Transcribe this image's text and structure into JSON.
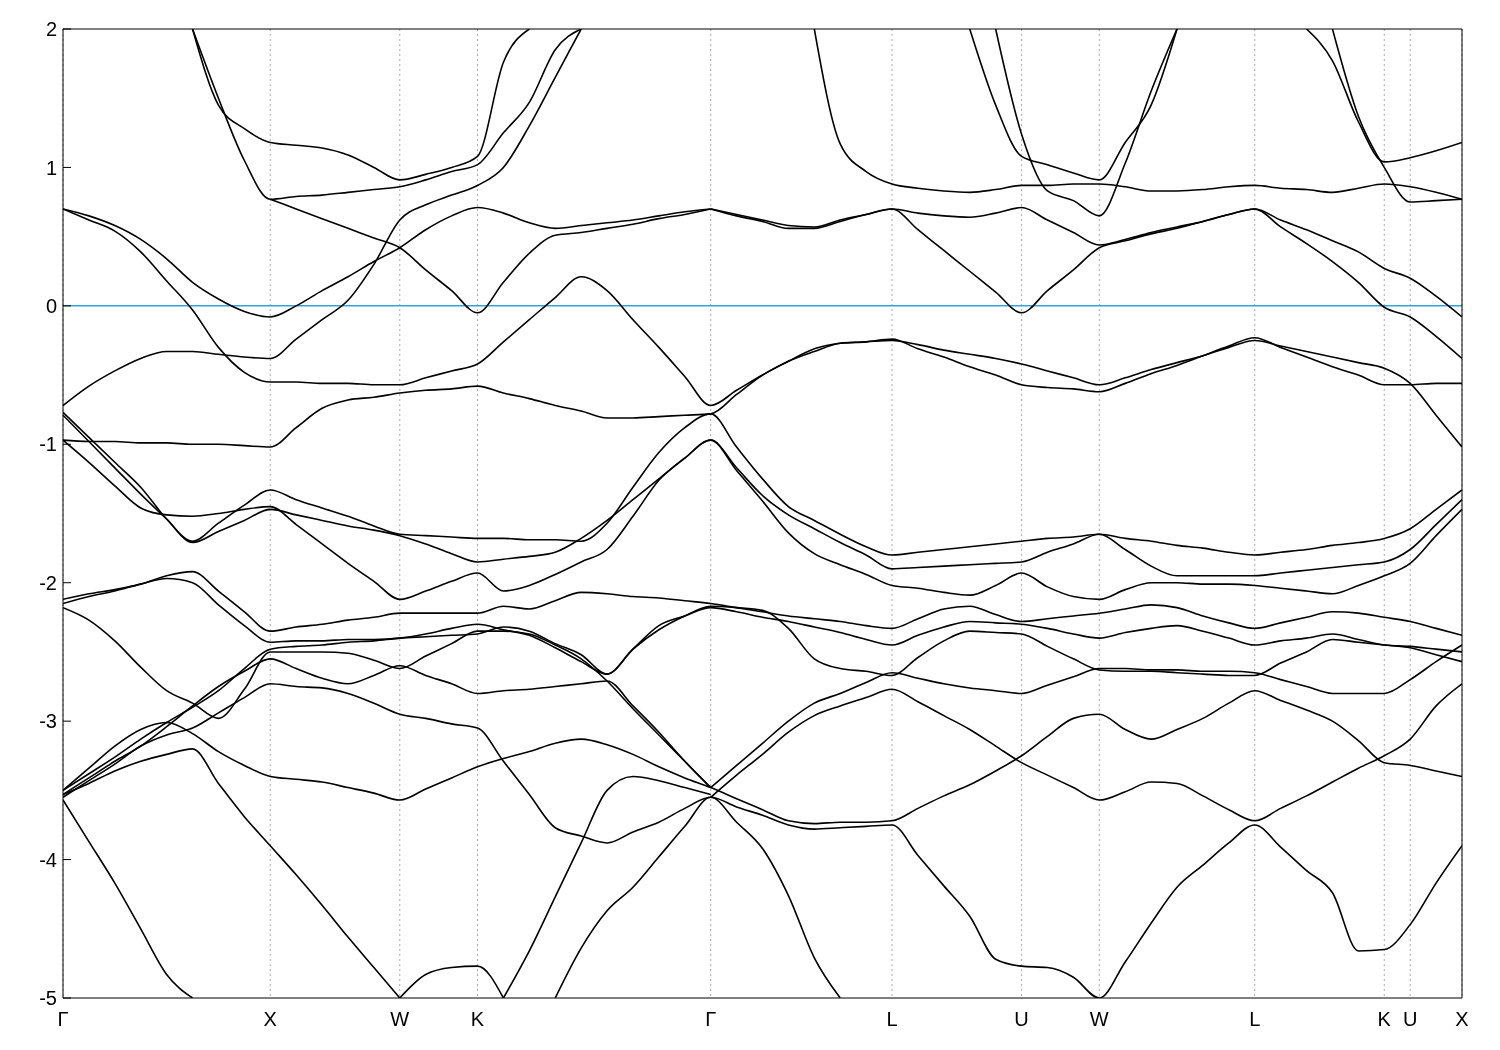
{
  "chart_data": {
    "type": "line",
    "ylim": [
      -5,
      2
    ],
    "yticks": [
      -5,
      -4,
      -3,
      -2,
      -1,
      0,
      1,
      2
    ],
    "grid": "x",
    "marker": "none",
    "line_style": "solid",
    "categories": [
      "Γ",
      null,
      null,
      null,
      null,
      null,
      null,
      null,
      "X",
      null,
      null,
      null,
      null,
      "W",
      null,
      null,
      "K",
      null,
      null,
      null,
      null,
      null,
      null,
      null,
      null,
      "Γ",
      null,
      null,
      null,
      null,
      null,
      null,
      "L",
      null,
      null,
      null,
      null,
      "U",
      null,
      null,
      "W",
      null,
      null,
      null,
      null,
      null,
      "L",
      null,
      null,
      null,
      null,
      "K",
      "U",
      null,
      "X"
    ],
    "ref_lines": [
      {
        "axis": "y",
        "value": 0,
        "color": "#33a3dc"
      }
    ],
    "series": [
      {
        "color": "#000000",
        "values": [
          0.7,
          0.62,
          0.54,
          0.39,
          0.18,
          -0.03,
          -0.3,
          -0.48,
          -0.55,
          -0.55,
          -0.56,
          -0.56,
          -0.57,
          -0.57,
          -0.52,
          -0.47,
          -0.42,
          -0.26,
          -0.1,
          0.06,
          0.21,
          0.11,
          -0.1,
          -0.3,
          -0.51,
          -0.72,
          -0.61,
          -0.5,
          -0.4,
          -0.33,
          -0.27,
          -0.26,
          -0.24,
          -0.31,
          -0.37,
          -0.44,
          -0.5,
          -0.57,
          -0.59,
          -0.6,
          -0.62,
          -0.56,
          -0.49,
          -0.43,
          -0.36,
          -0.29,
          -0.23,
          -0.3,
          -0.37,
          -0.44,
          -0.5,
          -0.57,
          -0.57,
          -0.56,
          -0.56
        ]
      },
      {
        "color": "#000000",
        "values": [
          0.7,
          0.65,
          0.58,
          0.48,
          0.34,
          0.17,
          0.05,
          -0.04,
          -0.08,
          0.0,
          0.11,
          0.21,
          0.32,
          0.42,
          0.55,
          0.65,
          0.71,
          0.67,
          0.6,
          0.56,
          0.58,
          0.6,
          0.62,
          0.65,
          0.68,
          0.7,
          null,
          null,
          null,
          null,
          null,
          null,
          null,
          null,
          null,
          null,
          null,
          null,
          null,
          null,
          null,
          null,
          null,
          null,
          null,
          null,
          null,
          null,
          null,
          null,
          null,
          null,
          null,
          null,
          null
        ]
      },
      {
        "color": "#000000",
        "values": [
          -0.72,
          -0.58,
          -0.47,
          -0.38,
          -0.33,
          -0.33,
          -0.35,
          -0.37,
          -0.38,
          -0.24,
          -0.1,
          0.04,
          0.3,
          0.62,
          0.73,
          0.8,
          0.87,
          1.0,
          1.3,
          1.65,
          2,
          null,
          null,
          null,
          null,
          null,
          null,
          null,
          null,
          null,
          null,
          null,
          null,
          null,
          null,
          null,
          null,
          null,
          null,
          null,
          null,
          null,
          null,
          null,
          null,
          null,
          null,
          null,
          null,
          null,
          null,
          null,
          null,
          null,
          null
        ]
      },
      {
        "color": "#000000",
        "values": [
          null,
          null,
          null,
          null,
          null,
          2,
          1.45,
          1.28,
          1.18,
          1.16,
          1.14,
          1.09,
          1.0,
          0.91,
          0.95,
          1.0,
          1.08,
          1.76,
          2,
          null,
          null,
          null,
          null,
          null,
          null,
          null,
          null,
          null,
          null,
          null,
          null,
          null,
          null,
          null,
          null,
          null,
          null,
          null,
          null,
          null,
          null,
          null,
          null,
          null,
          null,
          null,
          null,
          null,
          null,
          null,
          null,
          null,
          null,
          null,
          null
        ]
      },
      {
        "color": "#000000",
        "values": [
          null,
          null,
          null,
          null,
          null,
          2,
          1.5,
          1.05,
          0.77,
          0.79,
          0.8,
          0.82,
          0.84,
          0.86,
          0.91,
          0.97,
          1.02,
          1.25,
          1.47,
          1.85,
          2,
          null,
          null,
          null,
          null,
          null,
          null,
          null,
          null,
          null,
          null,
          null,
          null,
          null,
          null,
          null,
          null,
          null,
          null,
          null,
          null,
          null,
          null,
          null,
          null,
          null,
          null,
          null,
          null,
          null,
          null,
          null,
          null,
          null,
          null
        ]
      },
      {
        "color": "#000000",
        "values": [
          null,
          null,
          null,
          null,
          null,
          null,
          null,
          null,
          0.77,
          0.7,
          0.63,
          0.56,
          0.49,
          0.42,
          0.26,
          0.11,
          -0.05,
          0.17,
          0.38,
          0.51,
          0.53,
          0.56,
          0.59,
          0.63,
          0.66,
          0.7,
          null,
          null,
          null,
          null,
          null,
          null,
          null,
          null,
          null,
          null,
          null,
          null,
          null,
          null,
          null,
          null,
          null,
          null,
          null,
          null,
          null,
          null,
          null,
          null,
          null,
          null,
          null,
          null,
          null
        ]
      },
      {
        "color": "#000000",
        "values": [
          null,
          null,
          null,
          null,
          null,
          null,
          null,
          null,
          null,
          null,
          null,
          null,
          null,
          null,
          null,
          null,
          null,
          null,
          null,
          null,
          null,
          null,
          null,
          null,
          null,
          0.7,
          0.66,
          0.62,
          0.58,
          0.57,
          0.62,
          0.66,
          0.7,
          0.55,
          0.4,
          0.25,
          0.1,
          -0.05,
          0.11,
          0.26,
          0.42,
          0.47,
          0.52,
          0.56,
          0.61,
          0.66,
          0.7,
          0.57,
          0.45,
          0.32,
          0.17,
          -0.01,
          -0.08,
          -0.22,
          -0.38
        ]
      },
      {
        "color": "#000000",
        "values": [
          null,
          null,
          null,
          null,
          null,
          null,
          null,
          null,
          null,
          null,
          null,
          null,
          null,
          null,
          null,
          null,
          null,
          null,
          null,
          null,
          null,
          null,
          null,
          null,
          null,
          0.7,
          0.65,
          0.61,
          0.56,
          0.56,
          0.61,
          0.66,
          0.7,
          0.67,
          0.65,
          0.64,
          0.67,
          0.71,
          0.62,
          0.53,
          0.44,
          0.48,
          0.53,
          0.57,
          0.61,
          0.66,
          0.7,
          0.62,
          0.55,
          0.47,
          0.39,
          0.27,
          0.2,
          0.07,
          -0.08
        ]
      },
      {
        "color": "#000000",
        "values": [
          null,
          null,
          null,
          null,
          null,
          null,
          null,
          null,
          null,
          null,
          null,
          null,
          null,
          null,
          null,
          null,
          null,
          null,
          null,
          null,
          null,
          null,
          null,
          null,
          null,
          null,
          null,
          null,
          null,
          2,
          1.17,
          0.97,
          0.88,
          0.85,
          0.83,
          0.82,
          0.84,
          0.87,
          0.87,
          0.88,
          0.88,
          0.86,
          0.83,
          0.83,
          0.84,
          0.86,
          0.87,
          0.85,
          0.84,
          0.82,
          0.85,
          0.88,
          0.86,
          0.82,
          0.77
        ]
      },
      {
        "color": "#000000",
        "values": [
          null,
          null,
          null,
          null,
          null,
          null,
          null,
          null,
          null,
          null,
          null,
          null,
          null,
          null,
          null,
          null,
          null,
          null,
          null,
          null,
          null,
          null,
          null,
          null,
          null,
          null,
          null,
          null,
          null,
          null,
          null,
          null,
          null,
          null,
          null,
          2,
          1.45,
          1.08,
          1.02,
          0.96,
          0.91,
          1.18,
          1.45,
          2,
          null,
          null,
          null,
          null,
          null,
          null,
          null,
          null,
          null,
          null,
          null
        ]
      },
      {
        "color": "#000000",
        "values": [
          null,
          null,
          null,
          null,
          null,
          null,
          null,
          null,
          null,
          null,
          null,
          null,
          null,
          null,
          null,
          null,
          null,
          null,
          null,
          null,
          null,
          null,
          null,
          null,
          null,
          null,
          null,
          null,
          null,
          null,
          null,
          null,
          null,
          null,
          null,
          null,
          2,
          1.24,
          0.83,
          0.76,
          0.65,
          1.03,
          1.55,
          2,
          null,
          null,
          null,
          null,
          null,
          null,
          null,
          null,
          null,
          null,
          null
        ]
      },
      {
        "color": "#000000",
        "values": [
          null,
          null,
          null,
          null,
          null,
          null,
          null,
          null,
          null,
          null,
          null,
          null,
          null,
          null,
          null,
          null,
          null,
          null,
          null,
          null,
          null,
          null,
          null,
          null,
          null,
          null,
          null,
          null,
          null,
          null,
          null,
          null,
          null,
          null,
          null,
          null,
          null,
          null,
          null,
          null,
          null,
          null,
          null,
          null,
          null,
          null,
          null,
          null,
          2,
          1.77,
          1.33,
          1.04,
          1.07,
          1.12,
          1.18
        ]
      },
      {
        "color": "#000000",
        "values": [
          null,
          null,
          null,
          null,
          null,
          null,
          null,
          null,
          null,
          null,
          null,
          null,
          null,
          null,
          null,
          null,
          null,
          null,
          null,
          null,
          null,
          null,
          null,
          null,
          null,
          null,
          null,
          null,
          null,
          null,
          null,
          null,
          null,
          null,
          null,
          null,
          null,
          null,
          null,
          null,
          null,
          null,
          null,
          null,
          null,
          null,
          null,
          null,
          null,
          2,
          1.37,
          1.0,
          0.75,
          0.76,
          0.77
        ]
      },
      {
        "color": "#000000",
        "values": [
          -0.97,
          -0.98,
          -0.98,
          -0.99,
          -0.99,
          -1.0,
          -1.0,
          -1.01,
          -1.02,
          -0.88,
          -0.74,
          -0.68,
          -0.66,
          -0.63,
          -0.61,
          -0.6,
          -0.58,
          -0.63,
          -0.67,
          -0.72,
          -0.76,
          -0.81,
          -0.81,
          -0.8,
          -0.79,
          -0.78,
          -0.64,
          -0.5,
          -0.4,
          -0.31,
          -0.27,
          -0.26,
          -0.25,
          -0.28,
          -0.32,
          -0.35,
          -0.38,
          -0.42,
          -0.47,
          -0.52,
          -0.57,
          -0.52,
          -0.46,
          -0.41,
          -0.36,
          -0.3,
          -0.25,
          -0.29,
          -0.33,
          -0.37,
          -0.41,
          -0.45,
          -0.56,
          -0.79,
          -1.02
        ]
      },
      {
        "color": "#000000",
        "values": [
          -0.77,
          -0.95,
          -1.13,
          -1.31,
          -1.54,
          -1.7,
          -1.57,
          -1.44,
          -1.33,
          -1.4,
          -1.46,
          -1.52,
          -1.59,
          -1.65,
          -1.66,
          -1.67,
          -1.68,
          -1.68,
          -1.69,
          -1.69,
          -1.7,
          -1.57,
          -1.31,
          -1.06,
          -0.88,
          -0.78,
          -1.02,
          -1.25,
          -1.45,
          -1.55,
          -1.65,
          -1.74,
          -1.8,
          -1.78,
          -1.76,
          -1.74,
          -1.72,
          -1.7,
          -1.68,
          -1.67,
          -1.65,
          -1.68,
          -1.7,
          -1.73,
          -1.75,
          -1.78,
          -1.8,
          -1.78,
          -1.76,
          -1.73,
          -1.71,
          -1.68,
          -1.61,
          -1.47,
          -1.33
        ]
      },
      {
        "color": "#000000",
        "values": [
          -0.79,
          -0.98,
          -1.17,
          -1.36,
          -1.54,
          -1.71,
          -1.63,
          -1.55,
          -1.47,
          -1.51,
          -1.55,
          -1.59,
          -1.62,
          -1.66,
          -1.72,
          -1.79,
          -1.85,
          -1.83,
          -1.81,
          -1.78,
          -1.68,
          -1.55,
          -1.4,
          -1.25,
          -1.1,
          -0.97,
          -1.17,
          -1.37,
          -1.51,
          -1.61,
          -1.71,
          -1.8,
          -1.9,
          -1.89,
          -1.88,
          -1.87,
          -1.86,
          -1.85,
          -1.78,
          -1.72,
          -1.65,
          -1.76,
          -1.88,
          -1.95,
          -1.95,
          -1.95,
          -1.95,
          -1.93,
          -1.91,
          -1.89,
          -1.87,
          -1.85,
          -1.76,
          -1.58,
          -1.4
        ]
      },
      {
        "color": "#000000",
        "values": [
          -0.97,
          -1.13,
          -1.3,
          -1.46,
          -1.51,
          -1.52,
          -1.5,
          -1.47,
          -1.45,
          -1.58,
          -1.72,
          -1.86,
          -1.99,
          -2.12,
          -2.06,
          -1.99,
          -1.93,
          -2.06,
          -2.02,
          -1.94,
          -1.85,
          -1.76,
          -1.52,
          -1.26,
          -1.1,
          -0.97,
          -1.19,
          -1.41,
          -1.64,
          -1.79,
          -1.87,
          -1.94,
          -2.02,
          -2.04,
          -2.07,
          -2.09,
          -2.02,
          -1.93,
          -2.03,
          -2.1,
          -2.12,
          -2.05,
          -2.0,
          -2.0,
          -2.01,
          -2.01,
          -2.02,
          -2.04,
          -2.06,
          -2.08,
          -2.02,
          -1.95,
          -1.86,
          -1.66,
          -1.47
        ]
      },
      {
        "color": "#000000",
        "values": [
          -2.12,
          -2.08,
          -2.05,
          -2.01,
          -1.95,
          -1.92,
          -2.06,
          -2.21,
          -2.35,
          -2.32,
          -2.3,
          -2.27,
          -2.25,
          -2.22,
          -2.22,
          -2.22,
          -2.22,
          -2.17,
          -2.19,
          -2.13,
          -2.07,
          -2.08,
          -2.1,
          -2.11,
          -2.13,
          -2.15,
          -2.18,
          -2.21,
          -2.24,
          -2.26,
          -2.28,
          -2.31,
          -2.33,
          -2.26,
          -2.19,
          -2.17,
          -2.23,
          -2.28,
          -2.26,
          -2.24,
          -2.22,
          -2.19,
          -2.16,
          -2.18,
          -2.24,
          -2.29,
          -2.33,
          -2.29,
          -2.25,
          -2.21,
          -2.22,
          -2.25,
          -2.28,
          -2.33,
          -2.38
        ]
      },
      {
        "color": "#000000",
        "values": [
          -2.15,
          -2.1,
          -2.06,
          -2.01,
          -1.97,
          -2.0,
          -2.16,
          -2.31,
          -2.43,
          -2.42,
          -2.42,
          -2.41,
          -2.41,
          -2.4,
          -2.37,
          -2.33,
          -2.3,
          -2.34,
          -2.38,
          -2.47,
          -2.57,
          -2.66,
          -2.48,
          -2.34,
          -2.24,
          -2.17,
          -2.18,
          -2.2,
          -2.33,
          -2.55,
          -2.62,
          -2.64,
          -2.67,
          -2.54,
          -2.42,
          -2.35,
          -2.36,
          -2.37,
          -2.46,
          -2.55,
          -2.63,
          -2.64,
          -2.64,
          -2.65,
          -2.66,
          -2.67,
          -2.67,
          -2.58,
          -2.5,
          -2.41,
          -2.43,
          -2.45,
          -2.47,
          -2.52,
          -2.57
        ]
      },
      {
        "color": "#000000",
        "values": [
          -2.18,
          -2.27,
          -2.42,
          -2.61,
          -2.78,
          -2.87,
          -2.98,
          -2.77,
          -2.5,
          -2.5,
          -2.5,
          -2.51,
          -2.56,
          -2.62,
          -2.53,
          -2.44,
          -2.35,
          -2.35,
          -2.37,
          -2.45,
          -2.55,
          -2.71,
          -2.91,
          -3.1,
          -3.29,
          -3.48,
          null,
          null,
          null,
          null,
          null,
          null,
          null,
          null,
          null,
          null,
          null,
          null,
          null,
          null,
          null,
          null,
          null,
          null,
          null,
          null,
          null,
          null,
          null,
          null,
          null,
          null,
          null,
          null,
          null
        ]
      },
      {
        "color": "#000000",
        "values": [
          -3.5,
          -3.38,
          -3.26,
          -3.13,
          -3.01,
          -2.9,
          -2.78,
          -2.62,
          -2.48,
          -2.46,
          -2.45,
          -2.43,
          -2.42,
          -2.4,
          -2.39,
          -2.38,
          -2.37,
          -2.32,
          -2.35,
          -2.44,
          -2.52,
          -2.66,
          -2.48,
          -2.31,
          -2.24,
          -2.18,
          -2.21,
          -2.25,
          -2.28,
          -2.32,
          -2.36,
          -2.41,
          -2.45,
          -2.38,
          -2.32,
          -2.28,
          -2.29,
          -2.3,
          -2.33,
          -2.37,
          -2.4,
          -2.36,
          -2.33,
          -2.31,
          -2.35,
          -2.4,
          -2.45,
          -2.42,
          -2.4,
          -2.37,
          -2.41,
          -2.45,
          -2.46,
          -2.48,
          -2.5
        ]
      },
      {
        "color": "#000000",
        "values": [
          -3.53,
          -3.41,
          -3.29,
          -3.18,
          -3.04,
          -2.89,
          -2.75,
          -2.64,
          -2.55,
          -2.62,
          -2.69,
          -2.73,
          -2.67,
          -2.6,
          -2.67,
          -2.73,
          -2.8,
          -2.78,
          -2.77,
          -2.75,
          -2.73,
          -2.71,
          -2.89,
          -3.08,
          -3.29,
          -3.48,
          null,
          null,
          null,
          null,
          null,
          null,
          null,
          null,
          null,
          null,
          null,
          null,
          null,
          null,
          null,
          null,
          null,
          null,
          null,
          null,
          null,
          null,
          null,
          null,
          null,
          null,
          null,
          null,
          null
        ]
      },
      {
        "color": "#000000",
        "values": [
          -3.55,
          -3.43,
          -3.31,
          -3.18,
          -3.1,
          -3.05,
          -2.94,
          -2.83,
          -2.73,
          -2.75,
          -2.76,
          -2.8,
          -2.87,
          -2.95,
          -2.98,
          -3.02,
          -3.05,
          -3.29,
          -3.53,
          -3.77,
          -3.83,
          -3.88,
          -3.8,
          -3.73,
          -3.63,
          -3.55,
          -3.62,
          -3.68,
          -3.75,
          -3.78,
          -3.77,
          -3.76,
          -3.75,
          -3.97,
          -4.19,
          -4.41,
          -4.72,
          -4.77,
          -4.78,
          -4.85,
          -5.0,
          -4.74,
          -4.46,
          -4.2,
          -4.04,
          -3.88,
          -3.75,
          -3.91,
          -4.08,
          -4.24,
          -4.66,
          -4.65,
          -4.47,
          -4.17,
          -3.9
        ]
      },
      {
        "color": "#000000",
        "values": [
          -3.5,
          -3.34,
          -3.18,
          -3.06,
          -3.01,
          -3.09,
          -3.22,
          -3.32,
          -3.4,
          -3.42,
          -3.44,
          -3.48,
          -3.52,
          -3.57,
          -3.49,
          -3.41,
          -3.33,
          -3.27,
          -3.22,
          -3.16,
          -3.13,
          -3.17,
          -3.24,
          -3.33,
          -3.41,
          -3.48,
          -3.56,
          -3.64,
          -3.72,
          -3.74,
          -3.73,
          -3.73,
          -3.72,
          -3.63,
          -3.54,
          -3.46,
          -3.36,
          -3.25,
          -3.11,
          -2.98,
          -2.95,
          -3.06,
          -3.13,
          -3.06,
          -2.98,
          -2.87,
          -2.78,
          -2.85,
          -2.92,
          -3.0,
          -3.14,
          -3.3,
          -3.32,
          -3.36,
          -3.4
        ]
      },
      {
        "color": "#000000",
        "values": [
          null,
          null,
          null,
          null,
          null,
          null,
          null,
          null,
          null,
          null,
          null,
          null,
          null,
          null,
          null,
          null,
          null,
          null,
          null,
          null,
          null,
          null,
          null,
          null,
          null,
          -3.48,
          -3.32,
          -3.16,
          -3.0,
          -2.87,
          -2.8,
          -2.72,
          -2.65,
          -2.69,
          -2.73,
          -2.76,
          -2.78,
          -2.8,
          -2.74,
          -2.68,
          -2.62,
          -2.62,
          -2.63,
          -2.63,
          -2.64,
          -2.64,
          -2.65,
          -2.7,
          -2.75,
          -2.8,
          -2.8,
          -2.8,
          -2.7,
          -2.57,
          -2.45
        ]
      },
      {
        "color": "#000000",
        "values": [
          null,
          null,
          null,
          null,
          null,
          null,
          null,
          null,
          null,
          null,
          null,
          null,
          null,
          null,
          null,
          null,
          null,
          null,
          null,
          null,
          null,
          null,
          null,
          null,
          null,
          -3.55,
          -3.39,
          -3.24,
          -3.08,
          -2.96,
          -2.89,
          -2.83,
          -2.77,
          -2.86,
          -2.96,
          -3.06,
          -3.18,
          -3.3,
          -3.39,
          -3.48,
          -3.57,
          -3.51,
          -3.44,
          -3.45,
          -3.54,
          -3.64,
          -3.72,
          -3.63,
          -3.54,
          -3.44,
          -3.34,
          -3.25,
          -3.13,
          -2.89,
          -2.73
        ]
      },
      {
        "color": "#000000",
        "values": [
          -3.57,
          -3.87,
          -4.17,
          -4.5,
          -4.83,
          -5,
          null,
          null,
          null,
          null,
          null,
          null,
          null,
          null,
          null,
          null,
          null,
          null,
          null,
          null,
          null,
          null,
          null,
          null,
          null,
          null,
          null,
          null,
          null,
          null,
          null,
          null,
          null,
          null,
          null,
          null,
          null,
          null,
          null,
          null,
          null,
          null,
          null,
          null,
          null,
          null,
          null,
          null,
          null,
          null,
          null,
          null,
          null,
          null,
          null
        ]
      },
      {
        "color": "#000000",
        "values": [
          -3.53,
          -3.45,
          -3.36,
          -3.29,
          -3.24,
          -3.2,
          -3.45,
          -3.69,
          -3.9,
          -4.11,
          -4.33,
          -4.56,
          -4.78,
          -5,
          null,
          null,
          null,
          null,
          null,
          null,
          null,
          null,
          null,
          null,
          null,
          null,
          null,
          null,
          null,
          null,
          null,
          null,
          null,
          null,
          null,
          null,
          null,
          null,
          null,
          null,
          null,
          null,
          null,
          null,
          null,
          null,
          null,
          null,
          null,
          null,
          null,
          null,
          null,
          null,
          null
        ]
      },
      {
        "color": "#000000",
        "values": [
          null,
          null,
          null,
          null,
          null,
          null,
          null,
          null,
          null,
          null,
          null,
          null,
          null,
          -5,
          -4.83,
          -4.78,
          -4.77,
          -5,
          null,
          null,
          null,
          null,
          null,
          null,
          null,
          null,
          null,
          null,
          null,
          null,
          null,
          null,
          null,
          null,
          null,
          null,
          null,
          null,
          null,
          null,
          null,
          null,
          null,
          null,
          null,
          null,
          null,
          null,
          null,
          null,
          null,
          null,
          null,
          null,
          null
        ]
      },
      {
        "color": "#000000",
        "values": [
          null,
          null,
          null,
          null,
          null,
          null,
          null,
          null,
          null,
          null,
          null,
          null,
          null,
          null,
          null,
          null,
          null,
          -5,
          -4.66,
          -4.27,
          -3.88,
          -3.5,
          -3.4,
          -3.43,
          -3.48,
          -3.53,
          null,
          null,
          null,
          null,
          null,
          null,
          null,
          null,
          null,
          null,
          null,
          null,
          null,
          null,
          null,
          null,
          null,
          null,
          null,
          null,
          null,
          null,
          null,
          null,
          null,
          null,
          null,
          null,
          null
        ]
      },
      {
        "color": "#000000",
        "values": [
          null,
          null,
          null,
          null,
          null,
          null,
          null,
          null,
          null,
          null,
          null,
          null,
          null,
          null,
          null,
          null,
          null,
          null,
          null,
          -5,
          -4.64,
          -4.37,
          -4.2,
          -3.98,
          -3.76,
          -3.55,
          -3.73,
          -3.92,
          -4.26,
          -4.71,
          -5,
          null,
          null,
          null,
          null,
          null,
          null,
          null,
          null,
          null,
          null,
          null,
          null,
          null,
          null,
          null,
          null,
          null,
          null,
          null,
          null,
          null,
          null,
          null,
          null
        ]
      }
    ]
  }
}
